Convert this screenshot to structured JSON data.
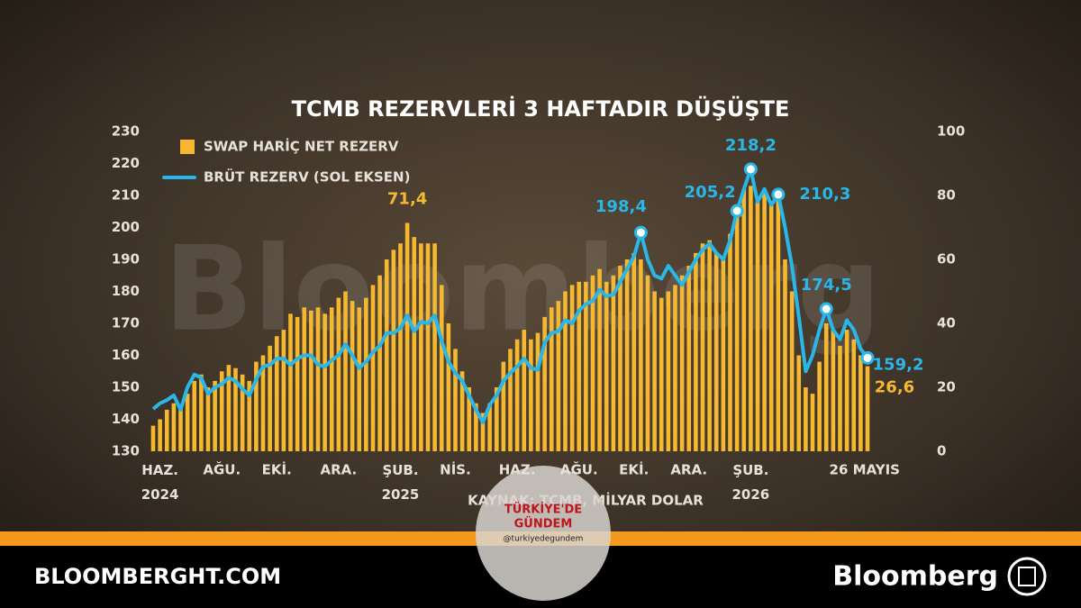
{
  "chart_data": {
    "type": "bar-line",
    "title": "TCMB REZERVLERİ 3 HAFTADIR DÜŞÜŞTE",
    "source": "KAYNAK: TCMB, MİLYAR DOLAR",
    "categories": [
      null,
      "HAZ.\n2024",
      null,
      null,
      null,
      null,
      null,
      null,
      null,
      null,
      "AĞU.",
      null,
      null,
      null,
      null,
      null,
      null,
      null,
      "EKİ.",
      null,
      null,
      null,
      null,
      null,
      null,
      null,
      null,
      "ARA.",
      null,
      null,
      null,
      null,
      null,
      null,
      null,
      null,
      "ŞUB.\n2025",
      null,
      null,
      null,
      null,
      null,
      null,
      null,
      "NİS.",
      null,
      null,
      null,
      null,
      null,
      null,
      null,
      null,
      "HAZ.",
      null,
      null,
      null,
      null,
      null,
      null,
      null,
      null,
      "AĞU.",
      null,
      null,
      null,
      null,
      null,
      null,
      null,
      "EKİ.",
      null,
      null,
      null,
      null,
      null,
      null,
      null,
      "ARA.",
      null,
      null,
      null,
      null,
      null,
      null,
      null,
      null,
      "ŞUB.\n2026",
      null,
      null,
      null,
      null,
      null,
      null,
      null,
      null,
      null,
      null,
      null,
      null,
      null,
      null,
      null,
      null,
      "26 MAYIS"
    ],
    "series": [
      {
        "name": "SWAP HARİÇ NET REZERV",
        "type": "bar",
        "axis": "y2",
        "color": "#f5b82e",
        "values": [
          8,
          10,
          13,
          15,
          14,
          18,
          22,
          24,
          20,
          22,
          25,
          27,
          26,
          24,
          22,
          28,
          30,
          33,
          36,
          38,
          43,
          42,
          45,
          44,
          45,
          43,
          45,
          48,
          50,
          47,
          45,
          48,
          52,
          55,
          60,
          63,
          65,
          71.4,
          67,
          65,
          65,
          65,
          52,
          40,
          32,
          25,
          20,
          15,
          12,
          15,
          20,
          28,
          32,
          35,
          38,
          35,
          37,
          42,
          45,
          47,
          50,
          52,
          53,
          53,
          55,
          57,
          53,
          55,
          58,
          60,
          62,
          60,
          55,
          50,
          48,
          50,
          52,
          55,
          58,
          62,
          65,
          66,
          62,
          60,
          68,
          76,
          82,
          83,
          78,
          82,
          78,
          80,
          60,
          50,
          30,
          20,
          18,
          28,
          40,
          38,
          33,
          38,
          35,
          30,
          26.6
        ],
        "value_labels": [
          null,
          null,
          null,
          null,
          null,
          null,
          null,
          null,
          null,
          null,
          null,
          null,
          null,
          null,
          null,
          null,
          null,
          null,
          null,
          null,
          null,
          null,
          null,
          null,
          null,
          null,
          null,
          null,
          null,
          null,
          null,
          null,
          null,
          null,
          null,
          null,
          null,
          "71,4",
          null,
          null,
          null,
          null,
          null,
          null,
          null,
          null,
          null,
          null,
          null,
          null,
          null,
          null,
          null,
          null,
          null,
          null,
          null,
          null,
          null,
          null,
          null,
          null,
          null,
          null,
          null,
          null,
          null,
          null,
          null,
          null,
          null,
          null,
          null,
          null,
          null,
          null,
          null,
          null,
          null,
          null,
          null,
          null,
          null,
          null,
          null,
          null,
          null,
          null,
          null,
          null,
          null,
          null,
          null,
          null,
          null,
          null,
          null,
          null,
          null,
          null,
          null,
          null,
          null,
          null,
          "26,6"
        ]
      },
      {
        "name": "BRÜT REZERV (SOL EKSEN)",
        "type": "line",
        "axis": "y",
        "color": "#29b6e8",
        "values": [
          143.2,
          145,
          146,
          147.5,
          143,
          150,
          154,
          153,
          148,
          150,
          151,
          153,
          152,
          149.5,
          147.5,
          152.5,
          156.5,
          157,
          159,
          159,
          157,
          159,
          160,
          160,
          157,
          156.5,
          158.5,
          160,
          163.5,
          160,
          156,
          158,
          161,
          163,
          167,
          167,
          168.5,
          172.5,
          167.5,
          170.5,
          170,
          172.5,
          164.5,
          158,
          154.5,
          152,
          147.5,
          143,
          139,
          144.5,
          147.5,
          152,
          154.5,
          156.5,
          159,
          156,
          155.5,
          164,
          167,
          167.5,
          171,
          170,
          174,
          176,
          177,
          180.5,
          178.5,
          179,
          183,
          187,
          191,
          198.4,
          190,
          185,
          184,
          188,
          185,
          182,
          186,
          190,
          193,
          195,
          192,
          190,
          196,
          205.2,
          212,
          218.2,
          208,
          212,
          207,
          210.3,
          200,
          188,
          172,
          155,
          160,
          168,
          174.5,
          168,
          165,
          171,
          168,
          162,
          159.2
        ],
        "value_labels": [
          null,
          null,
          null,
          null,
          null,
          null,
          null,
          null,
          null,
          null,
          null,
          null,
          null,
          null,
          null,
          null,
          null,
          null,
          null,
          null,
          null,
          null,
          null,
          null,
          null,
          null,
          null,
          null,
          null,
          null,
          null,
          null,
          null,
          null,
          null,
          null,
          null,
          null,
          null,
          null,
          null,
          null,
          null,
          null,
          null,
          null,
          null,
          null,
          null,
          null,
          null,
          null,
          null,
          null,
          null,
          null,
          null,
          null,
          null,
          null,
          null,
          null,
          null,
          null,
          null,
          null,
          null,
          null,
          null,
          null,
          null,
          "198,4",
          null,
          null,
          null,
          null,
          null,
          null,
          null,
          null,
          null,
          null,
          null,
          null,
          null,
          "205,2",
          null,
          "218,2",
          null,
          null,
          null,
          "210,3",
          null,
          null,
          null,
          null,
          null,
          null,
          "174,5",
          null,
          null,
          null,
          null,
          null,
          "159,2"
        ]
      }
    ],
    "ylim": [
      130,
      230
    ],
    "yticks": [
      130,
      140,
      150,
      160,
      170,
      180,
      190,
      200,
      210,
      220,
      230
    ],
    "y2lim": [
      0,
      100
    ],
    "y2ticks": [
      0,
      20,
      40,
      60,
      80,
      100
    ],
    "grid": false,
    "legend": "top-left"
  },
  "footer": {
    "site": "BLOOMBERGHT.COM",
    "brand": "Bloomberg"
  },
  "watermark": {
    "line1": "TÜRKİYE'DE",
    "line2": "GÜNDEM",
    "handle": "@turkiyedegundem"
  },
  "background_text": "Bloomberg"
}
